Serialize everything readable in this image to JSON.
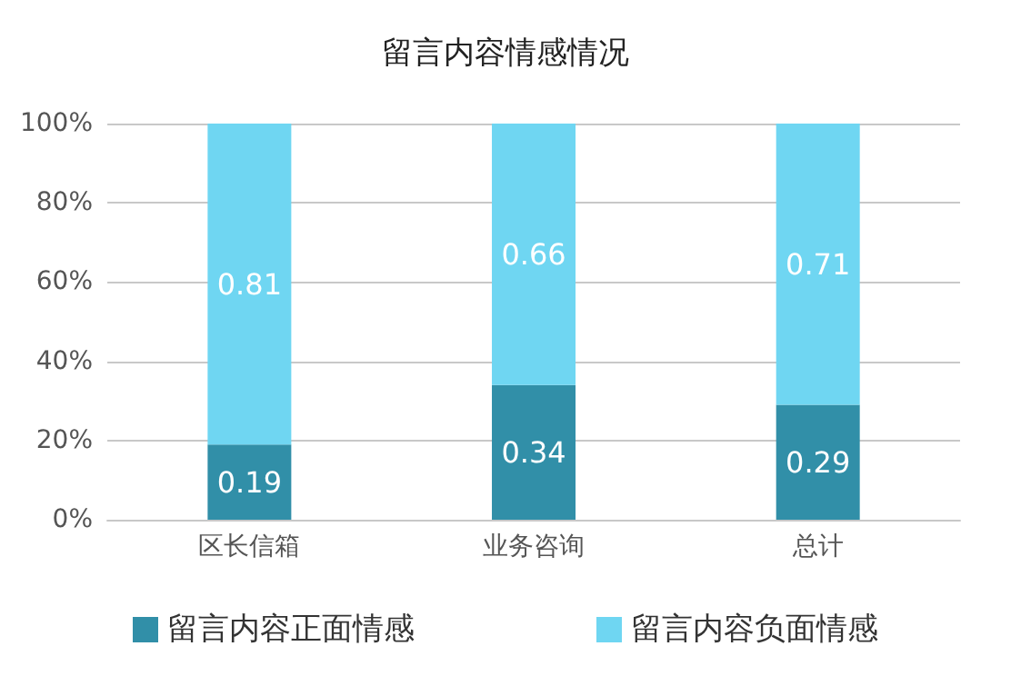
{
  "chart_data": {
    "type": "bar",
    "title": "留言内容情感情况",
    "categories": [
      "区长信箱",
      "业务咨询",
      "总计"
    ],
    "stacked": true,
    "data_labels": true,
    "series": [
      {
        "name": "留言内容正面情感",
        "color": "#318fa8",
        "values": [
          0.19,
          0.34,
          0.29
        ]
      },
      {
        "name": "留言内容负面情感",
        "color": "#6fd6f2",
        "values": [
          0.81,
          0.66,
          0.71
        ]
      }
    ],
    "ylim": [
      0,
      1
    ],
    "yticks": [
      {
        "value": 0,
        "label": "0%"
      },
      {
        "value": 0.2,
        "label": "20%"
      },
      {
        "value": 0.4,
        "label": "40%"
      },
      {
        "value": 0.6,
        "label": "60%"
      },
      {
        "value": 0.8,
        "label": "80%"
      },
      {
        "value": 1,
        "label": "100%"
      }
    ],
    "grid": "y",
    "legend": "bottom"
  }
}
